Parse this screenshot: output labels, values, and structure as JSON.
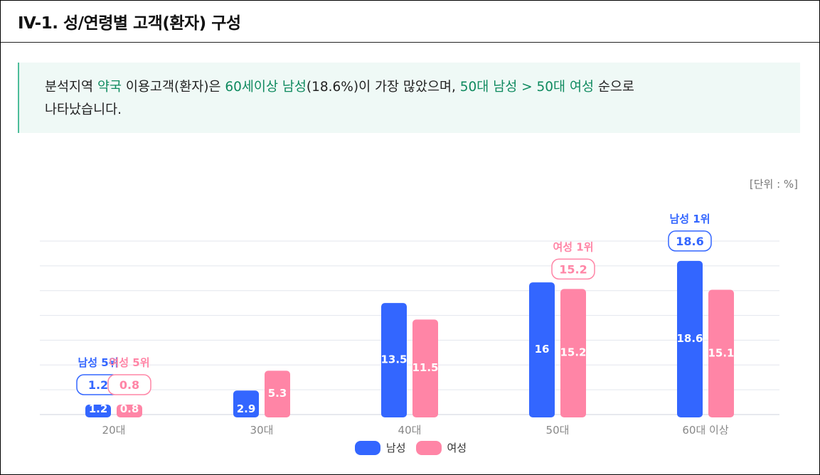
{
  "title": "IV-1. 성/연령별 고객(환자) 구성",
  "summary": {
    "seg1": "분석지역 ",
    "hl1": "약국",
    "seg2": " 이용고객(환자)은 ",
    "hl2": "60세이상 남성",
    "seg3": "(18.6%)이 가장 많았으며, ",
    "hl3": "50대 남성 > 50대 여성",
    "seg4": " 순으로",
    "line2": "나타났습니다."
  },
  "unit_label": "[단위 : %]",
  "chart_data": {
    "type": "bar",
    "categories": [
      "20대",
      "30대",
      "40대",
      "50대",
      "60대 이상"
    ],
    "series": [
      {
        "name": "남성",
        "color": "#3366ff",
        "values": [
          1.2,
          2.9,
          13.5,
          16,
          18.6
        ]
      },
      {
        "name": "여성",
        "color": "#ff85a6",
        "values": [
          0.8,
          5.3,
          11.5,
          15.2,
          15.1
        ]
      }
    ],
    "ylim": [
      0,
      21
    ],
    "grid": true,
    "legend": "bottom-center",
    "rank_callouts": [
      {
        "series": 0,
        "category": 0,
        "label": "남성 5위",
        "value": "1.2"
      },
      {
        "series": 1,
        "category": 0,
        "label": "여성 5위",
        "value": "0.8"
      },
      {
        "series": 1,
        "category": 3,
        "label": "여성 1위",
        "value": "15.2"
      },
      {
        "series": 0,
        "category": 4,
        "label": "남성 1위",
        "value": "18.6"
      }
    ]
  }
}
